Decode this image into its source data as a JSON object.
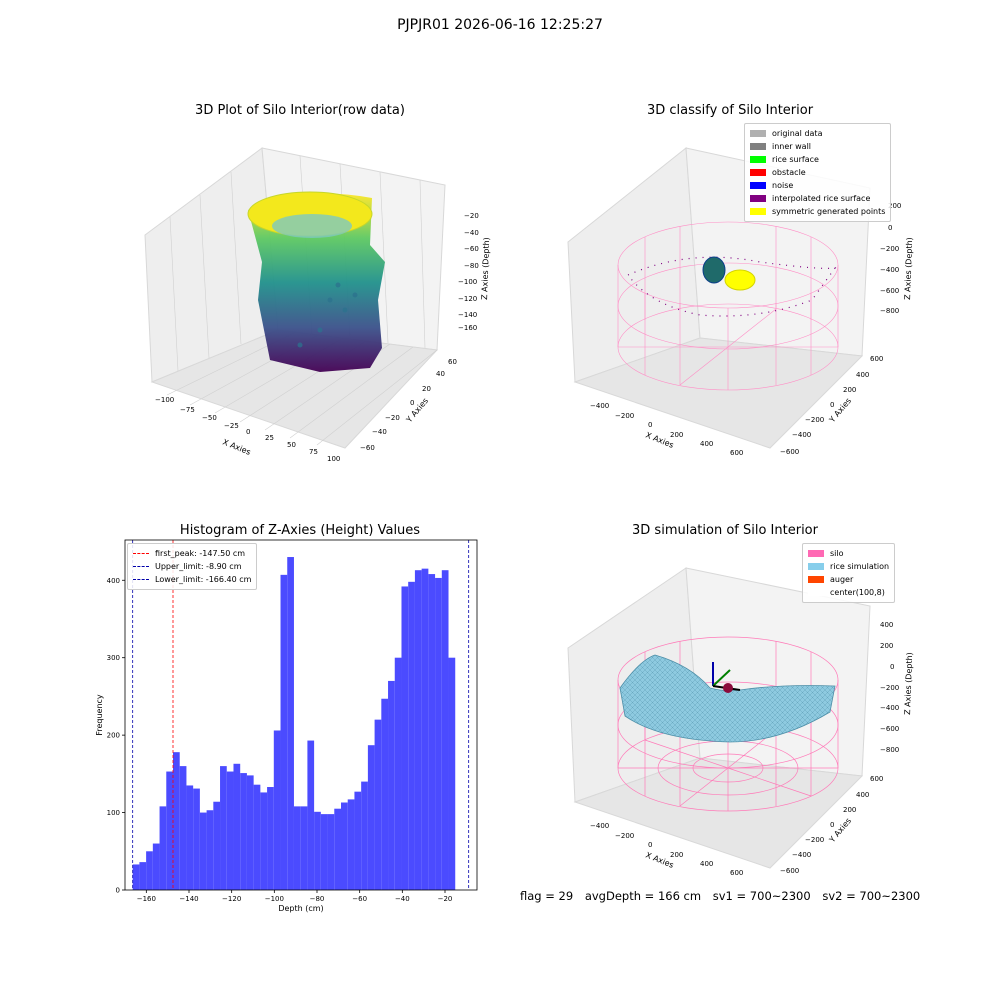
{
  "figure": {
    "suptitle": "PJPJR01 2026-06-16 12:25:27",
    "footer": {
      "flag": "flag = 29",
      "avg_depth": "avgDepth = 166 cm",
      "sv1": "sv1 = 700~2300",
      "sv2": "sv2 = 700~2300"
    }
  },
  "panels": {
    "raw": {
      "title": "3D Plot of Silo Interior(row data)",
      "xlabel": "X Axies",
      "ylabel": "Y Axies",
      "zlabel": "Z Axies (Depth)",
      "x_ticks": [
        "−100",
        "−75",
        "−50",
        "−25",
        "0",
        "25",
        "50",
        "75",
        "100"
      ],
      "y_ticks": [
        "60",
        "40",
        "20",
        "0",
        "−20",
        "−40",
        "−60"
      ],
      "z_ticks": [
        "−20",
        "−40",
        "−60",
        "−80",
        "−100",
        "−120",
        "−140",
        "−160"
      ]
    },
    "classify": {
      "title": "3D classify of Silo Interior",
      "xlabel": "X Axies",
      "ylabel": "Y Axies",
      "zlabel": "Z Axies (Depth)",
      "x_ticks": [
        "−400",
        "−200",
        "0",
        "200",
        "400",
        "600"
      ],
      "y_ticks": [
        "600",
        "400",
        "200",
        "0",
        "−200",
        "−400",
        "−600"
      ],
      "z_ticks": [
        "200",
        "0",
        "−200",
        "−400",
        "−600",
        "−800"
      ],
      "legend": [
        {
          "label": "original data",
          "color": "#b0b0b0"
        },
        {
          "label": "inner wall",
          "color": "#808080"
        },
        {
          "label": "rice surface",
          "color": "#00ff00"
        },
        {
          "label": "obstacle",
          "color": "#ff0000"
        },
        {
          "label": "noise",
          "color": "#0000ff"
        },
        {
          "label": "interpolated rice surface",
          "color": "#800080"
        },
        {
          "label": "symmetric generated points",
          "color": "#ffff00"
        }
      ]
    },
    "simulation": {
      "title": "3D simulation of Silo Interior",
      "xlabel": "X Axies",
      "ylabel": "Y Axies",
      "zlabel": "Z Axies (Depth)",
      "x_ticks": [
        "−400",
        "−200",
        "0",
        "200",
        "400",
        "600"
      ],
      "y_ticks": [
        "600",
        "400",
        "200",
        "0",
        "−200",
        "−400",
        "−600"
      ],
      "z_ticks": [
        "400",
        "200",
        "0",
        "−200",
        "−400",
        "−600",
        "−800"
      ],
      "legend": [
        {
          "label": "silo",
          "color": "#ff69b4"
        },
        {
          "label": "rice simulation",
          "color": "#87ceeb"
        },
        {
          "label": "auger",
          "color": "#ff4500"
        },
        {
          "label": "center(100,8)",
          "color": "#ffffff"
        }
      ]
    }
  },
  "chart_data": {
    "type": "bar",
    "title": "Histogram of Z-Axies (Height) Values",
    "xlabel": "Depth (cm)",
    "ylabel": "Frequency",
    "xlim": [
      -170,
      -5
    ],
    "ylim": [
      0,
      452
    ],
    "x_ticks": [
      -160,
      -140,
      -120,
      -100,
      -80,
      -60,
      -40,
      -20
    ],
    "y_ticks": [
      0,
      100,
      200,
      300,
      400
    ],
    "bar_color": "#4b4bff",
    "bin_start": -166.4,
    "bin_width": 3.15,
    "values": [
      33,
      36,
      50,
      60,
      108,
      153,
      178,
      160,
      135,
      131,
      100,
      103,
      114,
      160,
      153,
      163,
      151,
      148,
      136,
      126,
      133,
      206,
      407,
      430,
      108,
      108,
      193,
      101,
      98,
      98,
      105,
      113,
      117,
      127,
      140,
      187,
      220,
      247,
      270,
      300,
      392,
      398,
      413,
      415,
      408,
      403,
      413,
      300
    ],
    "vlines": [
      {
        "label": "first_peak: -147.50 cm",
        "x": -147.5,
        "color": "#ff0000"
      },
      {
        "label": "Upper_limit: -8.90 cm",
        "x": -8.9,
        "color": "#0000aa"
      },
      {
        "label": "Lower_limit: -166.40 cm",
        "x": -166.4,
        "color": "#0000aa"
      }
    ],
    "legend_position": "top-left"
  }
}
